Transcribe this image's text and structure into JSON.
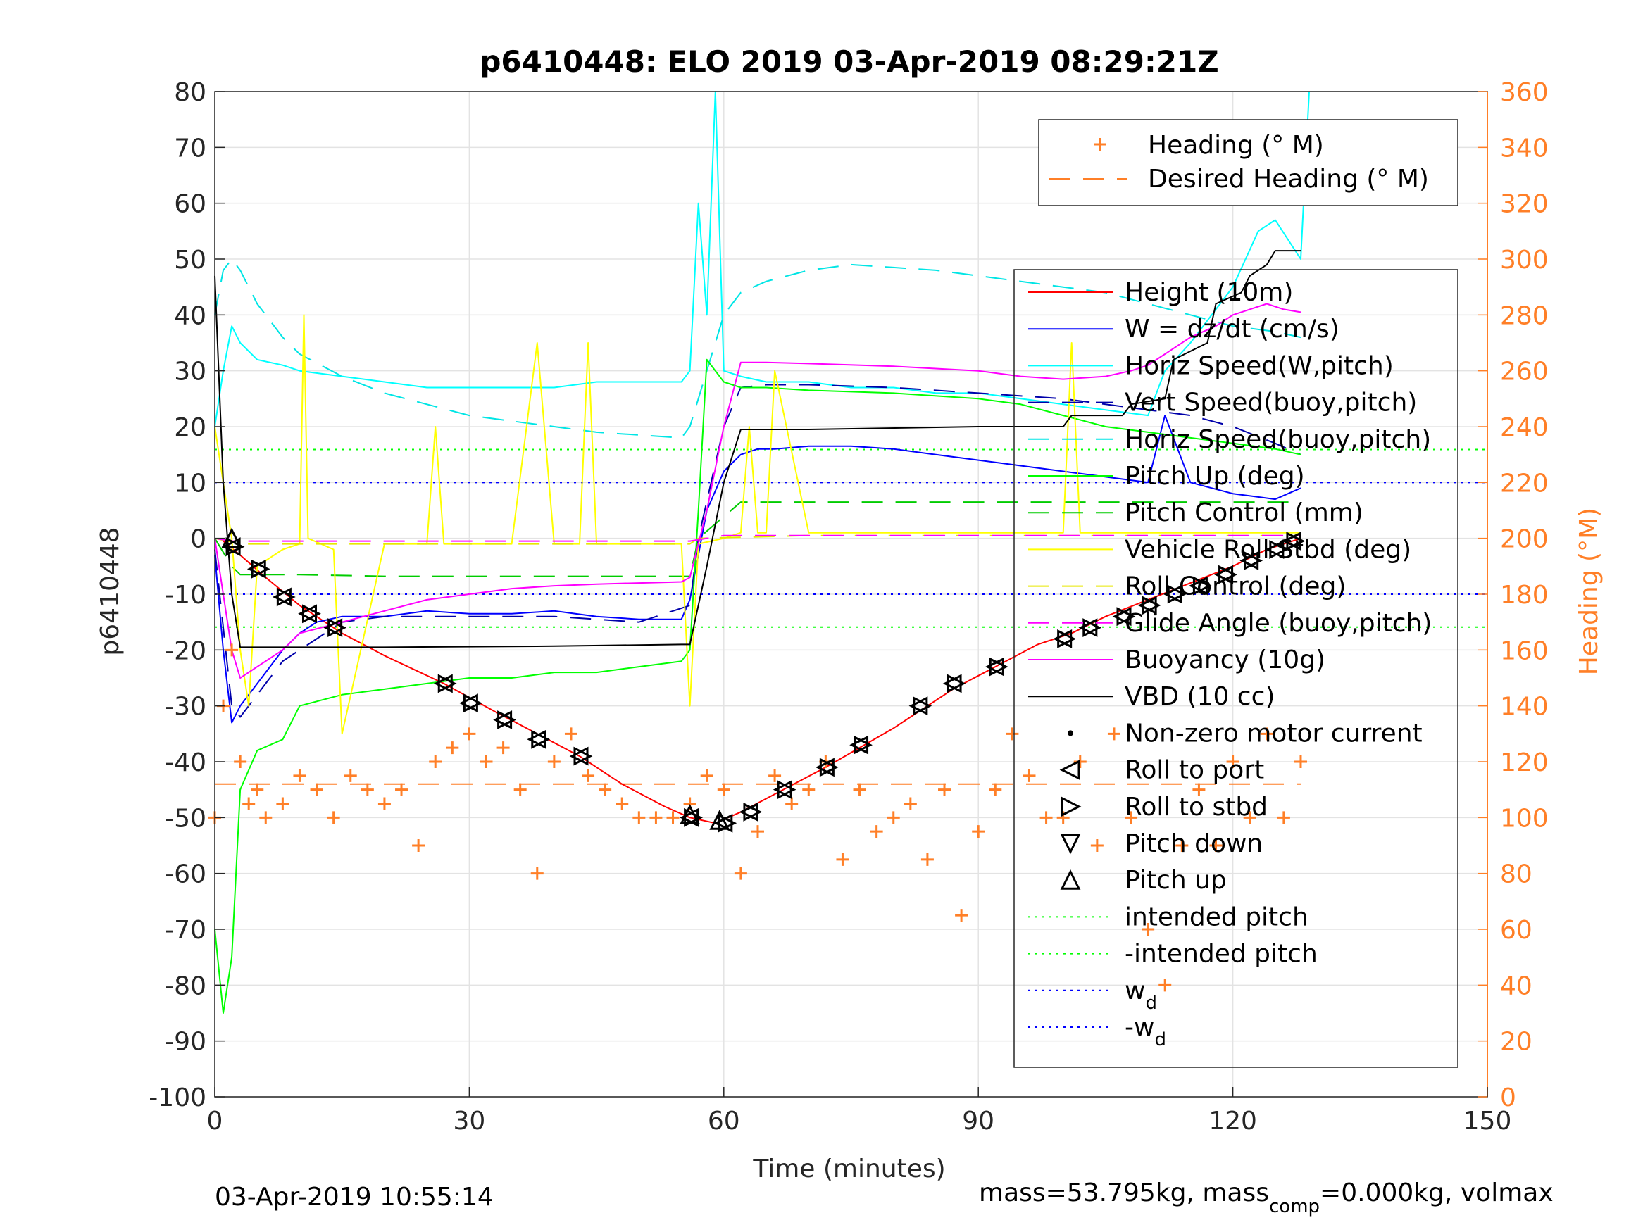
{
  "chart_data": {
    "type": "line",
    "title": "p6410448: ELO 2019 03-Apr-2019 08:29:21Z",
    "xlabel": "Time (minutes)",
    "ylabel": "p6410448",
    "ylabel_right": "Heading (°M)",
    "xlim": [
      0,
      150
    ],
    "ylim": [
      -100,
      80
    ],
    "ylim_right": [
      0,
      360
    ],
    "xticks": [
      0,
      30,
      60,
      90,
      120,
      150
    ],
    "yticks": [
      -100,
      -90,
      -80,
      -70,
      -60,
      -50,
      -40,
      -30,
      -20,
      -10,
      0,
      10,
      20,
      30,
      40,
      50,
      60,
      70,
      80
    ],
    "yticks_right": [
      0,
      20,
      40,
      60,
      80,
      100,
      120,
      140,
      160,
      180,
      200,
      220,
      240,
      260,
      280,
      300,
      320,
      340,
      360
    ],
    "grid": true,
    "colors": {
      "height": "#ff0000",
      "w": "#0000ff",
      "horiz_speed_w": "#00ffff",
      "vert_speed_buoy": "#0000aa",
      "horiz_speed_buoy": "#00e5e5",
      "pitch_up": "#00ff00",
      "pitch_control": "#00cc00",
      "roll_stbd": "#ffff00",
      "roll_control": "#e6e600",
      "glide_angle": "#ff00ff",
      "buoyancy": "#ff00ff",
      "vbd": "#000000",
      "heading": "#ff7f27",
      "intended_pitch": "#00ff00",
      "wd": "#0000ff",
      "right_axis": "#ff7f27"
    },
    "legend_heading": {
      "placement": "top-right",
      "entries": [
        "Heading (° M)",
        "Desired Heading (° M)"
      ]
    },
    "legend_main": {
      "placement": "right",
      "entries": [
        "Height (10m)",
        "W = dz/dt (cm/s)",
        "Horiz Speed(W,pitch)",
        "Vert Speed(buoy,pitch)",
        "Horiz Speed(buoy,pitch)",
        "Pitch Up (deg)",
        "Pitch Control (mm)",
        "Vehicle Roll Stbd (deg)",
        "Roll Control (deg)",
        "Glide Angle (buoy,pitch)",
        "Buoyancy (10g)",
        "VBD (10 cc)",
        "Non-zero motor current",
        "Roll to port",
        "Roll to stbd",
        "Pitch down",
        "Pitch up",
        "intended pitch",
        "-intended pitch"
      ],
      "wd_label": "w",
      "wd_sub": "d",
      "neg_wd_label": "-w",
      "neg_wd_sub": "d"
    },
    "reference_lines": {
      "intended_pitch": 15.9,
      "neg_intended_pitch": -15.9,
      "wd": 10,
      "neg_wd": -10,
      "desired_heading": 112
    },
    "series": [
      {
        "name": "Height (10m)",
        "x": [
          1,
          3,
          6,
          10,
          15,
          20,
          27,
          33,
          38,
          43,
          48,
          53,
          56,
          59,
          62,
          67,
          72,
          80,
          87,
          92,
          97,
          101,
          105,
          110,
          115,
          120,
          124,
          128
        ],
        "y": [
          -0.5,
          -3,
          -7,
          -12,
          -17,
          -21,
          -26,
          -31,
          -35,
          -39,
          -44,
          -48,
          -50,
          -51,
          -49,
          -45,
          -41,
          -34,
          -27,
          -23,
          -19,
          -17,
          -14,
          -11,
          -8,
          -5,
          -2,
          0
        ]
      },
      {
        "name": "W = dz/dt (cm/s)",
        "x": [
          0,
          1,
          2,
          3,
          4,
          6,
          8,
          10,
          12,
          15,
          20,
          25,
          30,
          35,
          40,
          45,
          50,
          55,
          56,
          58,
          60,
          62,
          64,
          66,
          70,
          75,
          80,
          85,
          90,
          95,
          100,
          105,
          110,
          112,
          115,
          120,
          125,
          128
        ],
        "y": [
          -3,
          -20,
          -33,
          -30,
          -28,
          -24,
          -20,
          -17,
          -15,
          -14,
          -14,
          -13,
          -13.5,
          -13.5,
          -13,
          -14,
          -14.5,
          -14.5,
          -11,
          5,
          12,
          15,
          16,
          16,
          16.5,
          16.5,
          16,
          15,
          14,
          13,
          12,
          11,
          10,
          22,
          10,
          8,
          7,
          9
        ]
      },
      {
        "name": "Horiz Speed(W,pitch)",
        "x": [
          0,
          1,
          2,
          3,
          5,
          8,
          10,
          15,
          20,
          25,
          30,
          35,
          40,
          45,
          50,
          55,
          56,
          57,
          58,
          59,
          60,
          62,
          65,
          70,
          75,
          80,
          85,
          90,
          95,
          100,
          105,
          110,
          112,
          115,
          120,
          123,
          125,
          128,
          129
        ],
        "y": [
          20,
          30,
          38,
          35,
          32,
          31,
          30,
          29,
          28,
          27,
          27,
          27,
          27,
          28,
          28,
          28,
          30,
          60,
          40,
          80,
          30,
          29,
          28,
          28,
          27,
          27,
          26,
          26,
          25,
          24,
          23,
          22,
          30,
          35,
          45,
          55,
          57,
          50,
          80
        ]
      },
      {
        "name": "Vert Speed(buoy,pitch)",
        "x": [
          0,
          2,
          3,
          5,
          8,
          10,
          15,
          20,
          25,
          30,
          40,
          50,
          56,
          57,
          60,
          62,
          65,
          70,
          80,
          90,
          100,
          105,
          110,
          115,
          120,
          125,
          128
        ],
        "y": [
          -2,
          -30,
          -32,
          -28,
          -22,
          -20,
          -15,
          -14,
          -14,
          -14,
          -14,
          -15,
          -12,
          0,
          20,
          27,
          27.5,
          27.5,
          27,
          26,
          25,
          24,
          23,
          22,
          20,
          17,
          15
        ]
      },
      {
        "name": "Horiz Speed(buoy,pitch)",
        "x": [
          0,
          1,
          2,
          3,
          5,
          8,
          10,
          15,
          20,
          25,
          30,
          35,
          40,
          45,
          50,
          55,
          56,
          58,
          60,
          62,
          65,
          70,
          75,
          80,
          85,
          90,
          95,
          100,
          105,
          110,
          115,
          120,
          125,
          128
        ],
        "y": [
          40,
          48,
          50,
          48,
          42,
          36,
          33,
          29,
          26,
          24,
          22,
          21,
          20,
          19,
          18.5,
          18,
          20,
          30,
          40,
          44,
          46,
          48,
          49,
          48.5,
          48,
          47,
          46,
          45,
          44,
          42,
          40,
          38,
          37,
          36
        ]
      },
      {
        "name": "Pitch Up (deg)",
        "x": [
          0,
          1,
          2,
          3,
          5,
          8,
          10,
          15,
          20,
          25,
          30,
          35,
          40,
          45,
          50,
          55,
          56,
          57,
          58,
          60,
          62,
          65,
          70,
          80,
          90,
          95,
          100,
          105,
          110,
          115,
          120,
          125,
          128
        ],
        "y": [
          -70,
          -85,
          -75,
          -45,
          -38,
          -36,
          -30,
          -28,
          -27,
          -26,
          -25,
          -25,
          -24,
          -24,
          -23,
          -22,
          -20,
          5,
          32,
          28,
          27,
          27,
          26.5,
          26,
          25,
          24,
          22,
          20,
          19,
          18,
          17,
          16,
          15
        ]
      },
      {
        "name": "Pitch Control (mm)",
        "x": [
          0,
          2,
          3,
          10,
          20,
          40,
          56,
          57,
          62,
          70,
          90,
          110,
          120,
          128
        ],
        "y": [
          0,
          -5,
          -6.5,
          -6.5,
          -6.8,
          -6.8,
          -6.8,
          0,
          6.5,
          6.5,
          6.5,
          6.5,
          6.5,
          6.5
        ]
      },
      {
        "name": "Vehicle Roll Stbd (deg)",
        "x": [
          0,
          1,
          2,
          3,
          4,
          5,
          8,
          10,
          10.5,
          11,
          14,
          15,
          20,
          25,
          26,
          27,
          30,
          35,
          38,
          40,
          43,
          44,
          45,
          50,
          55,
          56,
          57,
          60,
          62,
          63,
          64,
          65,
          66,
          70,
          75,
          80,
          85,
          90,
          95,
          100,
          101,
          102,
          105,
          110,
          115,
          120,
          125,
          128
        ],
        "y": [
          20,
          10,
          0,
          -20,
          -30,
          -5,
          -2,
          -1,
          40,
          0,
          -2,
          -35,
          -1,
          -1,
          20,
          -1,
          -1,
          -1,
          35,
          -1,
          -1,
          35,
          -1,
          -1,
          -1,
          -30,
          -1,
          0,
          1,
          20,
          1,
          1,
          30,
          1,
          1,
          1,
          1,
          1,
          1,
          1,
          35,
          1,
          1,
          1,
          1,
          1,
          1,
          1
        ]
      },
      {
        "name": "Roll Control (deg)",
        "x": [
          0,
          3,
          10,
          20,
          40,
          56,
          57,
          70,
          100,
          128
        ],
        "y": [
          0,
          -1,
          -1,
          -1,
          -1,
          -1,
          0,
          0.5,
          0.5,
          0.5
        ]
      },
      {
        "name": "Glide Angle (buoy,pitch)",
        "x": [
          0,
          2,
          5,
          20,
          56,
          60,
          62,
          90,
          128
        ],
        "y": [
          0,
          -0.5,
          -0.5,
          -0.5,
          -0.5,
          0.5,
          0.5,
          0.5,
          0.5
        ]
      },
      {
        "name": "Buoyancy (10g)",
        "x": [
          0,
          1,
          2,
          3,
          5,
          8,
          10,
          15,
          20,
          25,
          30,
          35,
          40,
          45,
          50,
          55,
          56,
          58,
          60,
          62,
          65,
          70,
          80,
          90,
          95,
          100,
          105,
          108,
          110,
          112,
          115,
          118,
          120,
          122,
          124,
          126,
          128
        ],
        "y": [
          0,
          -10,
          -20,
          -25,
          -23,
          -20,
          -17,
          -15,
          -13,
          -11,
          -10,
          -9,
          -8.5,
          -8.2,
          -8,
          -7.8,
          -7,
          5,
          20,
          31.5,
          31.5,
          31.3,
          30.8,
          30,
          29,
          28.5,
          29,
          30,
          31,
          33,
          36,
          38,
          40,
          41,
          42,
          41,
          40.5
        ]
      },
      {
        "name": "VBD (10 cc)",
        "x": [
          0,
          1,
          2,
          3,
          5,
          10,
          20,
          40,
          55,
          56,
          58,
          60,
          62,
          70,
          90,
          100,
          101,
          107,
          108,
          112,
          113,
          117,
          118,
          121,
          122,
          124,
          125,
          128
        ],
        "y": [
          47,
          10,
          -10,
          -19.5,
          -19.5,
          -19.5,
          -19.5,
          -19.3,
          -19,
          -19,
          -5,
          10,
          19.5,
          19.5,
          20,
          20,
          22,
          22,
          24,
          25,
          32,
          35,
          42,
          44,
          47,
          49,
          51.5,
          51.5
        ]
      },
      {
        "name": "Heading (° M)",
        "x": [
          0,
          1,
          2,
          3,
          4,
          5,
          6,
          8,
          10,
          12,
          14,
          16,
          18,
          20,
          22,
          24,
          26,
          28,
          30,
          32,
          34,
          36,
          38,
          40,
          42,
          44,
          46,
          48,
          50,
          52,
          54,
          56,
          58,
          60,
          62,
          64,
          66,
          68,
          70,
          72,
          74,
          76,
          78,
          80,
          82,
          84,
          86,
          88,
          90,
          92,
          94,
          96,
          98,
          100,
          102,
          104,
          106,
          108,
          110,
          112,
          114,
          116,
          118,
          120,
          122,
          124,
          126,
          128
        ],
        "y": [
          100,
          140,
          160,
          120,
          105,
          110,
          100,
          105,
          115,
          110,
          100,
          115,
          110,
          105,
          110,
          90,
          120,
          125,
          130,
          120,
          125,
          110,
          80,
          120,
          130,
          115,
          110,
          105,
          100,
          100,
          100,
          105,
          115,
          110,
          80,
          95,
          115,
          105,
          110,
          120,
          85,
          110,
          95,
          100,
          105,
          85,
          110,
          65,
          95,
          110,
          130,
          115,
          100,
          100,
          120,
          90,
          130,
          100,
          60,
          40,
          90,
          110,
          90,
          120,
          100,
          130,
          100,
          120
        ]
      }
    ],
    "markers": {
      "roll_to_port": {
        "x": [
          2,
          5,
          8,
          11,
          14,
          27,
          30,
          34,
          38,
          43,
          56,
          60,
          63,
          67,
          72,
          76,
          83,
          87,
          92,
          100,
          103,
          107,
          110,
          113,
          116,
          119,
          122,
          125,
          127
        ],
        "y": [
          -1.5,
          -5.5,
          -10.5,
          -13.5,
          -16,
          -26,
          -29.5,
          -32.5,
          -36,
          -39,
          -50,
          -51,
          -49,
          -45,
          -41,
          -37,
          -30,
          -26,
          -23,
          -18,
          -16,
          -14,
          -12,
          -10,
          -8.5,
          -6.5,
          -4,
          -2,
          -0.5
        ]
      },
      "pitch_up": {
        "x": [
          2,
          56,
          59.5
        ],
        "y": [
          0,
          -49.5,
          -50.5
        ]
      }
    },
    "footer_left": "03-Apr-2019 10:55:14",
    "footer_right_a": "mass=53.795kg, mass",
    "footer_right_sub": "comp",
    "footer_right_b": "=0.000kg, volmax"
  }
}
